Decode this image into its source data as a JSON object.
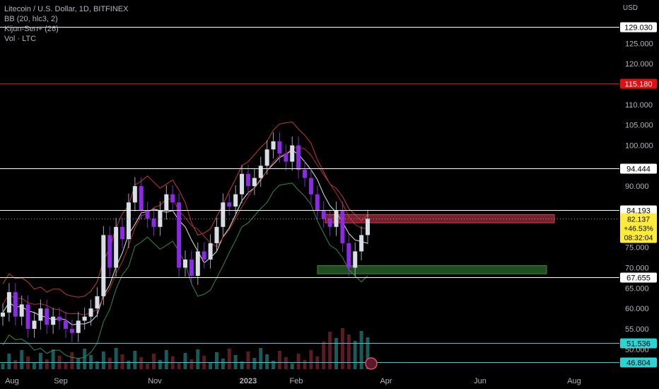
{
  "legend": {
    "title": "Litecoin / U.S. Dollar, 1D, BITFINEX",
    "bb": "BB (20, hlc3, 2)",
    "kijun": "Kijun-Sen+ (26)",
    "vol": "Vol · LTC"
  },
  "axis": {
    "currency": "USD",
    "y_ticks": [
      "125.000",
      "120.000",
      "110.000",
      "105.000",
      "100.000",
      "90.000",
      "75.000",
      "70.000",
      "65.000",
      "60.000",
      "55.000",
      "50.000"
    ],
    "x_ticks": [
      "Aug",
      "Sep",
      "Nov",
      "2023",
      "Feb",
      "Apr",
      "Jun",
      "Aug"
    ]
  },
  "levels": [
    {
      "label": "129.030",
      "color": "#ffffff",
      "text": "#000000"
    },
    {
      "label": "115.180",
      "color": "#e01010",
      "text": "#ffffff"
    },
    {
      "label": "94.444",
      "color": "#ffffff",
      "text": "#000000"
    },
    {
      "label": "84.193",
      "color": "#ffffff",
      "text": "#000000"
    },
    {
      "label": "67.655",
      "color": "#ffffff",
      "text": "#000000"
    },
    {
      "label": "51.536",
      "color": "#2ad4d4",
      "text": "#000000"
    },
    {
      "label": "46.804",
      "color": "#2ad4d4",
      "text": "#000000"
    }
  ],
  "price_box": {
    "price": "82.137",
    "change": "+46.53%",
    "countdown": "08:32:04",
    "color": "#ffeb3b"
  },
  "zones": [
    {
      "name": "resistance-zone",
      "color": "#d63b4e"
    },
    {
      "name": "support-zone",
      "color": "#3d8a3d"
    }
  ],
  "chart_data": {
    "type": "candlestick",
    "symbol": "Litecoin / U.S. Dollar",
    "interval": "1D",
    "exchange": "BITFINEX",
    "months": [
      "Aug",
      "Sep",
      "Nov",
      "2023",
      "Feb",
      "Apr",
      "Jun",
      "Aug"
    ],
    "close_path": [
      59,
      64,
      58,
      61,
      55,
      57,
      60,
      56,
      58,
      57,
      55,
      54,
      57,
      58,
      60,
      63,
      78,
      70,
      80,
      77,
      86,
      90,
      84,
      82,
      80,
      84,
      88,
      86,
      70,
      72,
      68,
      74,
      72,
      76,
      80,
      86,
      85,
      88,
      93,
      90,
      92,
      95,
      99,
      101,
      98,
      96,
      100,
      94,
      92,
      88,
      84,
      82,
      80,
      84,
      76,
      70,
      74,
      78,
      82
    ],
    "last_close": 82.137,
    "change_pct": 46.53,
    "horizontal_levels": [
      129.03,
      115.18,
      94.444,
      84.193,
      67.655,
      51.536,
      46.804
    ],
    "resistance_zone": [
      81,
      83
    ],
    "support_zone": [
      68.5,
      70.5
    ]
  }
}
